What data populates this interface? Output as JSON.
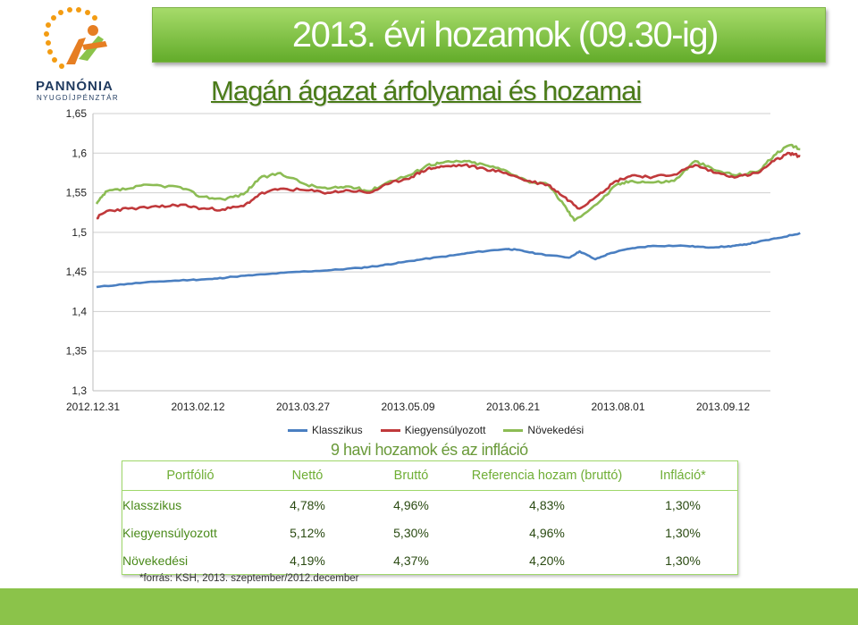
{
  "header": {
    "title": "2013. évi hozamok (09.30-ig)",
    "subtitle": "Magán ágazat árfolyamai és hozamai"
  },
  "logo": {
    "name": "PANNÓNIA",
    "tagline": "NYUGDÍJPÉNZTÁR"
  },
  "colors": {
    "klasszikus": "#4a7fc1",
    "kiegyensulyozott": "#c0393b",
    "novekedesi": "#8cbc54",
    "banner": "#7cc03e",
    "bottom_bar": "#8bc34a"
  },
  "chart_data": {
    "type": "line",
    "x_ticks": [
      "2012.12.31",
      "2013.02.12",
      "2013.03.27",
      "2013.05.09",
      "2013.06.21",
      "2013.08.01",
      "2013.09.12"
    ],
    "y_ticks": [
      "1,3",
      "1,35",
      "1,4",
      "1,45",
      "1,5",
      "1,55",
      "1,6",
      "1,65"
    ],
    "ylim": [
      1.3,
      1.65
    ],
    "x_range_index": [
      0,
      6.7
    ],
    "grid": true,
    "legend": "bottom",
    "series": [
      {
        "name": "Klasszikus",
        "points": [
          [
            0,
            1.431
          ],
          [
            0.3,
            1.435
          ],
          [
            0.6,
            1.438
          ],
          [
            0.9,
            1.44
          ],
          [
            1.1,
            1.441
          ],
          [
            1.3,
            1.444
          ],
          [
            1.6,
            1.447
          ],
          [
            1.9,
            1.45
          ],
          [
            2.2,
            1.452
          ],
          [
            2.5,
            1.455
          ],
          [
            2.7,
            1.458
          ],
          [
            2.9,
            1.462
          ],
          [
            3.1,
            1.466
          ],
          [
            3.4,
            1.471
          ],
          [
            3.6,
            1.475
          ],
          [
            3.9,
            1.479
          ],
          [
            4.0,
            1.478
          ],
          [
            4.2,
            1.473
          ],
          [
            4.5,
            1.468
          ],
          [
            4.6,
            1.476
          ],
          [
            4.75,
            1.466
          ],
          [
            4.9,
            1.474
          ],
          [
            5.1,
            1.48
          ],
          [
            5.3,
            1.483
          ],
          [
            5.6,
            1.483
          ],
          [
            5.8,
            1.481
          ],
          [
            6.0,
            1.482
          ],
          [
            6.15,
            1.484
          ],
          [
            6.3,
            1.488
          ],
          [
            6.5,
            1.493
          ],
          [
            6.7,
            1.499
          ]
        ]
      },
      {
        "name": "Kiegyensúlyozott",
        "points": [
          [
            0,
            1.518
          ],
          [
            0.1,
            1.527
          ],
          [
            0.3,
            1.53
          ],
          [
            0.6,
            1.532
          ],
          [
            0.8,
            1.535
          ],
          [
            1.0,
            1.53
          ],
          [
            1.2,
            1.529
          ],
          [
            1.4,
            1.533
          ],
          [
            1.55,
            1.548
          ],
          [
            1.75,
            1.555
          ],
          [
            2.0,
            1.553
          ],
          [
            2.2,
            1.55
          ],
          [
            2.4,
            1.553
          ],
          [
            2.6,
            1.55
          ],
          [
            2.8,
            1.562
          ],
          [
            3.0,
            1.57
          ],
          [
            3.15,
            1.58
          ],
          [
            3.3,
            1.583
          ],
          [
            3.5,
            1.585
          ],
          [
            3.7,
            1.58
          ],
          [
            3.9,
            1.575
          ],
          [
            4.1,
            1.565
          ],
          [
            4.3,
            1.56
          ],
          [
            4.45,
            1.545
          ],
          [
            4.6,
            1.53
          ],
          [
            4.8,
            1.55
          ],
          [
            4.95,
            1.565
          ],
          [
            5.1,
            1.572
          ],
          [
            5.3,
            1.57
          ],
          [
            5.5,
            1.573
          ],
          [
            5.7,
            1.585
          ],
          [
            5.9,
            1.575
          ],
          [
            6.1,
            1.57
          ],
          [
            6.3,
            1.575
          ],
          [
            6.45,
            1.59
          ],
          [
            6.6,
            1.6
          ],
          [
            6.7,
            1.596
          ]
        ]
      },
      {
        "name": "Növekedési",
        "points": [
          [
            0,
            1.536
          ],
          [
            0.1,
            1.552
          ],
          [
            0.3,
            1.555
          ],
          [
            0.5,
            1.56
          ],
          [
            0.8,
            1.557
          ],
          [
            1.0,
            1.545
          ],
          [
            1.2,
            1.542
          ],
          [
            1.4,
            1.548
          ],
          [
            1.55,
            1.568
          ],
          [
            1.75,
            1.575
          ],
          [
            2.0,
            1.56
          ],
          [
            2.2,
            1.555
          ],
          [
            2.4,
            1.558
          ],
          [
            2.6,
            1.552
          ],
          [
            2.8,
            1.565
          ],
          [
            3.0,
            1.573
          ],
          [
            3.15,
            1.585
          ],
          [
            3.3,
            1.588
          ],
          [
            3.5,
            1.59
          ],
          [
            3.7,
            1.585
          ],
          [
            3.9,
            1.578
          ],
          [
            4.1,
            1.565
          ],
          [
            4.3,
            1.56
          ],
          [
            4.45,
            1.535
          ],
          [
            4.55,
            1.515
          ],
          [
            4.8,
            1.54
          ],
          [
            4.95,
            1.56
          ],
          [
            5.1,
            1.565
          ],
          [
            5.3,
            1.563
          ],
          [
            5.5,
            1.565
          ],
          [
            5.7,
            1.59
          ],
          [
            5.9,
            1.578
          ],
          [
            6.1,
            1.572
          ],
          [
            6.3,
            1.577
          ],
          [
            6.45,
            1.597
          ],
          [
            6.6,
            1.61
          ],
          [
            6.7,
            1.605
          ]
        ]
      }
    ]
  },
  "table": {
    "title": "9 havi hozamok és az infláció",
    "headers": [
      "Portfólió",
      "Nettó",
      "Bruttó",
      "Referencia hozam (bruttó)",
      "Infláció*"
    ],
    "rows": [
      [
        "Klasszikus",
        "4,78%",
        "4,96%",
        "4,83%",
        "1,30%"
      ],
      [
        "Kiegyensúlyozott",
        "5,12%",
        "5,30%",
        "4,96%",
        "1,30%"
      ],
      [
        "Növekedési",
        "4,19%",
        "4,37%",
        "4,20%",
        "1,30%"
      ]
    ]
  },
  "footnote": "*forrás: KSH, 2013. szeptember/2012.december"
}
